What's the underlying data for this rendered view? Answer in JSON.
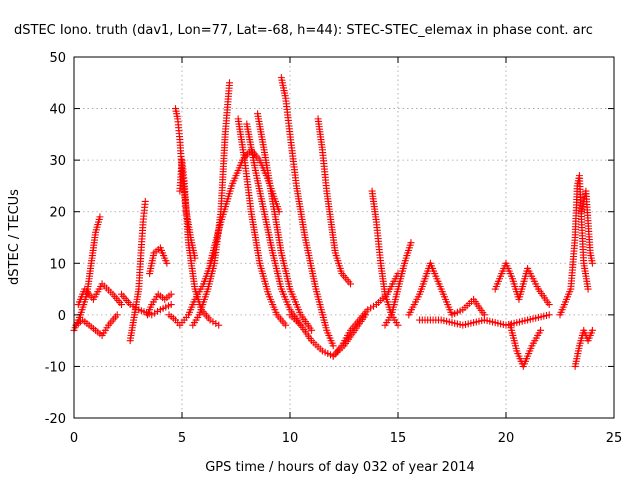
{
  "chart_data": {
    "type": "scatter",
    "title": "dSTEC Iono. truth (dav1, Lon=77, Lat=-68, h=44): STEC-STEC_elemax in phase cont. arc",
    "xlabel": "GPS time / hours of day 032 of year 2014",
    "ylabel": "dSTEC  / TECUs",
    "xlim": [
      0,
      25
    ],
    "ylim": [
      -20,
      50
    ],
    "xticks": [
      "0",
      "5",
      "10",
      "15",
      "20",
      "25"
    ],
    "yticks": [
      "-20",
      "-10",
      "0",
      "10",
      "20",
      "30",
      "40",
      "50"
    ],
    "grid": true,
    "legend": "none",
    "marker": "+",
    "color": "#ff0000",
    "series": [
      {
        "x": [
          0.0,
          0.3,
          0.6,
          0.8,
          1.0,
          1.2
        ],
        "y": [
          -3,
          0,
          4,
          10,
          16,
          19
        ]
      },
      {
        "x": [
          0.1,
          0.4,
          0.7,
          1.0,
          1.3,
          1.6,
          2.0
        ],
        "y": [
          -2,
          -1,
          -2,
          -3,
          -4,
          -2,
          0
        ]
      },
      {
        "x": [
          0.2,
          0.5,
          0.9,
          1.3,
          1.8,
          2.2
        ],
        "y": [
          2,
          5,
          3,
          6,
          4,
          2
        ]
      },
      {
        "x": [
          2.6,
          2.8,
          3.0,
          3.1,
          3.2,
          3.3
        ],
        "y": [
          -5,
          0,
          5,
          12,
          18,
          22
        ]
      },
      {
        "x": [
          2.2,
          2.6,
          3.0,
          3.6,
          4.0,
          4.5
        ],
        "y": [
          4,
          2,
          1,
          0,
          1,
          2
        ]
      },
      {
        "x": [
          3.4,
          3.6,
          3.9,
          4.2,
          4.5
        ],
        "y": [
          0,
          2,
          4,
          3,
          4
        ]
      },
      {
        "x": [
          3.5,
          3.7,
          4.0,
          4.3
        ],
        "y": [
          8,
          12,
          13,
          10
        ]
      },
      {
        "x": [
          4.4,
          4.7,
          4.9,
          5.1,
          5.3,
          5.6,
          6.0,
          6.5
        ],
        "y": [
          0,
          -1,
          -2,
          -1,
          0,
          3,
          6,
          12
        ]
      },
      {
        "x": [
          4.7,
          4.8,
          4.9,
          5.0,
          5.2,
          5.4,
          5.6
        ],
        "y": [
          40,
          38,
          34,
          28,
          20,
          15,
          11
        ]
      },
      {
        "x": [
          4.9,
          5.0,
          5.1,
          5.3,
          5.6,
          5.9,
          6.3,
          6.7
        ],
        "y": [
          24,
          30,
          26,
          14,
          5,
          1,
          -1,
          -2
        ]
      },
      {
        "x": [
          5.5,
          5.8,
          6.2,
          6.5,
          6.8,
          7.0,
          7.2
        ],
        "y": [
          -2,
          0,
          5,
          10,
          20,
          35,
          45
        ]
      },
      {
        "x": [
          6.3,
          6.8,
          7.3,
          7.8,
          8.2,
          8.6,
          9.0,
          9.5
        ],
        "y": [
          10,
          18,
          25,
          30,
          32,
          30,
          26,
          20
        ]
      },
      {
        "x": [
          7.6,
          7.9,
          8.2,
          8.6,
          9.0,
          9.4,
          9.8
        ],
        "y": [
          38,
          30,
          20,
          10,
          4,
          0,
          -2
        ]
      },
      {
        "x": [
          8.0,
          8.4,
          8.8,
          9.2,
          9.6,
          10.0,
          10.5
        ],
        "y": [
          37,
          28,
          20,
          12,
          5,
          1,
          -2
        ]
      },
      {
        "x": [
          8.5,
          8.8,
          9.2,
          9.6,
          10.0,
          10.5,
          11.0
        ],
        "y": [
          39,
          32,
          22,
          12,
          5,
          0,
          -3
        ]
      },
      {
        "x": [
          9.6,
          9.8,
          10.0,
          10.3,
          10.7,
          11.2,
          11.7,
          12.0
        ],
        "y": [
          46,
          42,
          35,
          25,
          15,
          5,
          -3,
          -6
        ]
      },
      {
        "x": [
          11.3,
          11.5,
          11.7,
          11.9,
          12.1,
          12.4,
          12.8
        ],
        "y": [
          38,
          32,
          24,
          18,
          12,
          8,
          6
        ]
      },
      {
        "x": [
          10.0,
          10.5,
          11.0,
          11.5,
          12.0,
          12.5,
          13.0,
          13.5
        ],
        "y": [
          0,
          -2,
          -5,
          -7,
          -8,
          -6,
          -3,
          0
        ]
      },
      {
        "x": [
          12.0,
          12.4,
          12.8,
          13.2,
          13.6,
          14.0,
          14.5,
          15.0
        ],
        "y": [
          -8,
          -6,
          -3,
          -1,
          1,
          2,
          4,
          8
        ]
      },
      {
        "x": [
          13.8,
          14.0,
          14.2,
          14.4,
          14.7,
          15.0
        ],
        "y": [
          24,
          18,
          10,
          4,
          0,
          -2
        ]
      },
      {
        "x": [
          14.4,
          14.7,
          15.0,
          15.3,
          15.6
        ],
        "y": [
          -2,
          0,
          5,
          10,
          14
        ]
      },
      {
        "x": [
          15.5,
          16.0,
          16.5,
          17.0,
          17.5,
          18.0,
          18.5,
          19.0
        ],
        "y": [
          0,
          4,
          10,
          5,
          0,
          1,
          3,
          0
        ]
      },
      {
        "x": [
          16.0,
          17.0,
          18.0,
          19.0,
          20.0,
          21.0,
          22.0
        ],
        "y": [
          -1,
          -1,
          -2,
          -1,
          -2,
          -1,
          0
        ]
      },
      {
        "x": [
          19.5,
          20.0,
          20.3,
          20.6,
          21.0,
          21.5,
          22.0
        ],
        "y": [
          5,
          10,
          7,
          3,
          9,
          5,
          2
        ]
      },
      {
        "x": [
          20.2,
          20.5,
          20.8,
          21.2,
          21.6
        ],
        "y": [
          -2,
          -7,
          -10,
          -6,
          -3
        ]
      },
      {
        "x": [
          22.5,
          23.0,
          23.2,
          23.3,
          23.4,
          23.5,
          23.6,
          23.8
        ],
        "y": [
          0,
          5,
          15,
          25,
          27,
          18,
          10,
          5
        ]
      },
      {
        "x": [
          23.2,
          23.4,
          23.6,
          23.8,
          24.0
        ],
        "y": [
          -10,
          -6,
          -3,
          -5,
          -3
        ]
      },
      {
        "x": [
          23.5,
          23.7,
          23.9,
          24.0
        ],
        "y": [
          20,
          24,
          12,
          10
        ]
      }
    ]
  }
}
